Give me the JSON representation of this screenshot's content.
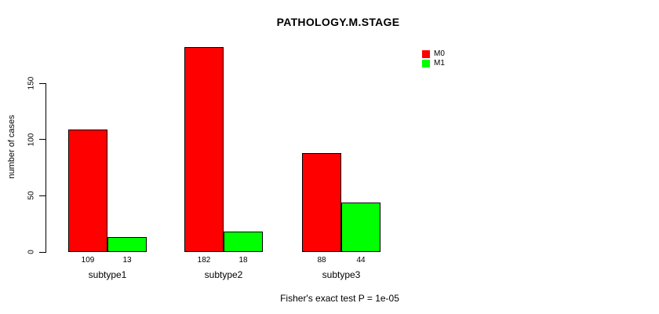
{
  "chart_data": {
    "type": "bar",
    "title": "PATHOLOGY.M.STAGE",
    "ylabel": "number of cases",
    "xlabel": "",
    "categories": [
      "subtype1",
      "subtype2",
      "subtype3"
    ],
    "series": [
      {
        "name": "M0",
        "color": "#FF0000",
        "values": [
          109,
          182,
          88
        ]
      },
      {
        "name": "M1",
        "color": "#00FF00",
        "values": [
          13,
          18,
          44
        ]
      }
    ],
    "bar_value_labels_shown": true,
    "yticks": [
      0,
      50,
      100,
      150
    ],
    "ylim": [
      0,
      150
    ],
    "grid": false,
    "legend_position": "top-right",
    "annotation": "Fisher's exact test P = 1e-05"
  },
  "colors": {
    "background": "#FFFFFF",
    "axis": "#000000",
    "text": "#000000",
    "bar_border": "#000000"
  }
}
